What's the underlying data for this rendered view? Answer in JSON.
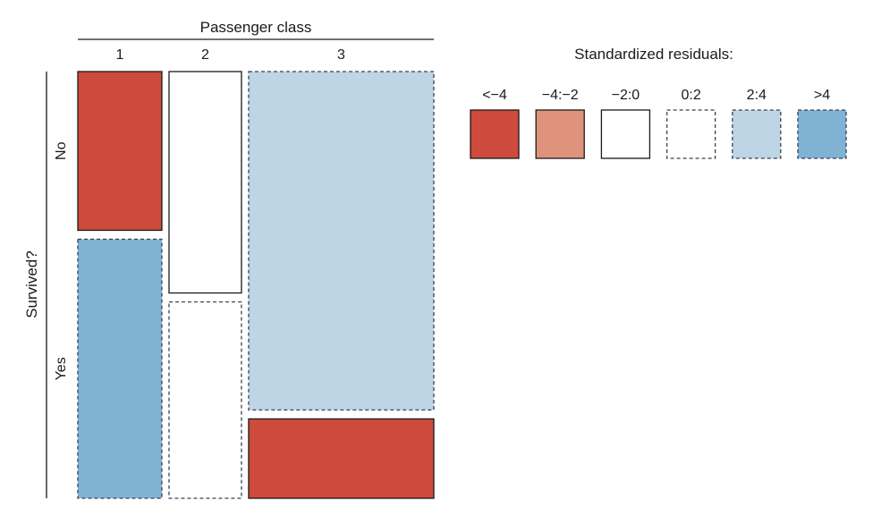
{
  "chart_data": {
    "type": "mosaic",
    "title": "",
    "column_variable": "Passenger class",
    "row_variable": "Survived?",
    "columns": [
      "1",
      "2",
      "3"
    ],
    "rows": [
      "No",
      "Yes"
    ],
    "column_proportions": [
      0.246,
      0.212,
      0.542
    ],
    "cells": [
      {
        "column": "1",
        "row": "No",
        "proportion": 0.38,
        "residual_band": "<−4"
      },
      {
        "column": "1",
        "row": "Yes",
        "proportion": 0.62,
        "residual_band": ">4"
      },
      {
        "column": "2",
        "row": "No",
        "proportion": 0.53,
        "residual_band": "−2:0"
      },
      {
        "column": "2",
        "row": "Yes",
        "proportion": 0.47,
        "residual_band": "0:2"
      },
      {
        "column": "3",
        "row": "No",
        "proportion": 0.81,
        "residual_band": "2:4"
      },
      {
        "column": "3",
        "row": "Yes",
        "proportion": 0.19,
        "residual_band": "<−4"
      }
    ],
    "legend": {
      "title": "Standardized residuals:",
      "placement": "top-right",
      "items": [
        {
          "label": "<−4",
          "color": "#cc4b3c",
          "border": "solid"
        },
        {
          "label": "−4:−2",
          "color": "#e0937b",
          "border": "solid"
        },
        {
          "label": "−2:0",
          "color": "#ffffff",
          "border": "solid"
        },
        {
          "label": "0:2",
          "color": "#ffffff",
          "border": "dashed"
        },
        {
          "label": "2:4",
          "color": "#bdd5e5",
          "border": "dashed"
        },
        {
          "label": ">4",
          "color": "#80b2d4",
          "border": "dashed"
        }
      ]
    }
  }
}
